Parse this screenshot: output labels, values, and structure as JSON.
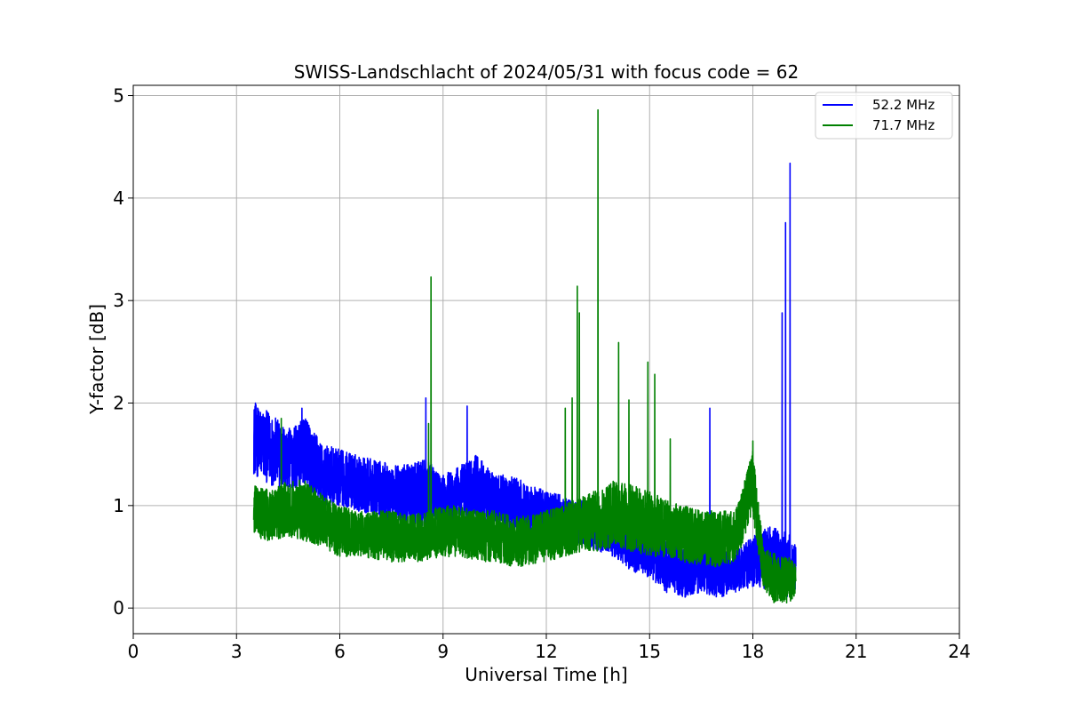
{
  "chart_data": {
    "type": "line",
    "title": "SWISS-Landschlacht of 2024/05/31 with focus code = 62",
    "xlabel": "Universal Time [h]",
    "ylabel": "Y-factor [dB]",
    "xlim": [
      0,
      24
    ],
    "ylim": [
      -0.25,
      5.1
    ],
    "xticks": [
      0,
      3,
      6,
      9,
      12,
      15,
      18,
      21,
      24
    ],
    "yticks": [
      0,
      1,
      2,
      3,
      4,
      5
    ],
    "grid": true,
    "legend_position": "top-right",
    "series": [
      {
        "name": "52.2 MHz",
        "color": "#0000ff",
        "envelope": [
          {
            "x": 3.5,
            "low": 1.3,
            "high": 2.0
          },
          {
            "x": 4.0,
            "low": 1.2,
            "high": 1.9
          },
          {
            "x": 4.5,
            "low": 1.15,
            "high": 1.75
          },
          {
            "x": 5.0,
            "low": 1.2,
            "high": 1.85
          },
          {
            "x": 5.5,
            "low": 1.0,
            "high": 1.6
          },
          {
            "x": 6.0,
            "low": 1.0,
            "high": 1.55
          },
          {
            "x": 6.5,
            "low": 0.95,
            "high": 1.5
          },
          {
            "x": 7.0,
            "low": 0.9,
            "high": 1.45
          },
          {
            "x": 7.5,
            "low": 0.85,
            "high": 1.4
          },
          {
            "x": 8.0,
            "low": 0.8,
            "high": 1.4
          },
          {
            "x": 8.5,
            "low": 0.8,
            "high": 1.45
          },
          {
            "x": 9.0,
            "low": 0.8,
            "high": 1.3
          },
          {
            "x": 9.5,
            "low": 0.85,
            "high": 1.4
          },
          {
            "x": 10.0,
            "low": 0.85,
            "high": 1.5
          },
          {
            "x": 10.5,
            "low": 0.8,
            "high": 1.3
          },
          {
            "x": 11.0,
            "low": 0.75,
            "high": 1.3
          },
          {
            "x": 11.5,
            "low": 0.7,
            "high": 1.2
          },
          {
            "x": 12.0,
            "low": 0.7,
            "high": 1.15
          },
          {
            "x": 12.5,
            "low": 0.65,
            "high": 1.1
          },
          {
            "x": 13.0,
            "low": 0.6,
            "high": 1.05
          },
          {
            "x": 13.5,
            "low": 0.55,
            "high": 1.0
          },
          {
            "x": 14.0,
            "low": 0.5,
            "high": 1.0
          },
          {
            "x": 14.5,
            "low": 0.35,
            "high": 0.85
          },
          {
            "x": 15.0,
            "low": 0.3,
            "high": 0.75
          },
          {
            "x": 15.5,
            "low": 0.15,
            "high": 0.65
          },
          {
            "x": 16.0,
            "low": 0.1,
            "high": 0.6
          },
          {
            "x": 16.5,
            "low": 0.15,
            "high": 0.65
          },
          {
            "x": 17.0,
            "low": 0.1,
            "high": 0.55
          },
          {
            "x": 17.5,
            "low": 0.15,
            "high": 0.55
          },
          {
            "x": 18.0,
            "low": 0.2,
            "high": 0.7
          },
          {
            "x": 18.5,
            "low": 0.15,
            "high": 0.8
          },
          {
            "x": 19.0,
            "low": 0.1,
            "high": 0.75
          },
          {
            "x": 19.25,
            "low": 0.1,
            "high": 0.6
          }
        ],
        "spikes": [
          {
            "x": 3.55,
            "y": 2.0
          },
          {
            "x": 4.9,
            "y": 1.95
          },
          {
            "x": 8.5,
            "y": 2.05
          },
          {
            "x": 9.7,
            "y": 1.97
          },
          {
            "x": 16.75,
            "y": 1.95
          },
          {
            "x": 18.85,
            "y": 2.88
          },
          {
            "x": 18.95,
            "y": 3.76
          },
          {
            "x": 19.08,
            "y": 4.34
          }
        ]
      },
      {
        "name": "71.7 MHz",
        "color": "#008000",
        "envelope": [
          {
            "x": 3.5,
            "low": 0.7,
            "high": 1.2
          },
          {
            "x": 4.0,
            "low": 0.65,
            "high": 1.15
          },
          {
            "x": 4.5,
            "low": 0.7,
            "high": 1.25
          },
          {
            "x": 5.0,
            "low": 0.65,
            "high": 1.25
          },
          {
            "x": 5.5,
            "low": 0.6,
            "high": 1.1
          },
          {
            "x": 6.0,
            "low": 0.5,
            "high": 1.0
          },
          {
            "x": 6.5,
            "low": 0.5,
            "high": 0.95
          },
          {
            "x": 7.0,
            "low": 0.48,
            "high": 0.95
          },
          {
            "x": 7.5,
            "low": 0.45,
            "high": 0.95
          },
          {
            "x": 8.0,
            "low": 0.45,
            "high": 0.9
          },
          {
            "x": 8.5,
            "low": 0.45,
            "high": 0.95
          },
          {
            "x": 9.0,
            "low": 0.5,
            "high": 1.0
          },
          {
            "x": 9.5,
            "low": 0.5,
            "high": 1.0
          },
          {
            "x": 10.0,
            "low": 0.45,
            "high": 0.95
          },
          {
            "x": 10.5,
            "low": 0.45,
            "high": 0.95
          },
          {
            "x": 11.0,
            "low": 0.4,
            "high": 0.9
          },
          {
            "x": 11.5,
            "low": 0.4,
            "high": 0.9
          },
          {
            "x": 12.0,
            "low": 0.45,
            "high": 0.95
          },
          {
            "x": 12.5,
            "low": 0.5,
            "high": 1.0
          },
          {
            "x": 13.0,
            "low": 0.55,
            "high": 1.1
          },
          {
            "x": 13.5,
            "low": 0.55,
            "high": 1.15
          },
          {
            "x": 14.0,
            "low": 0.6,
            "high": 1.25
          },
          {
            "x": 14.5,
            "low": 0.55,
            "high": 1.2
          },
          {
            "x": 15.0,
            "low": 0.5,
            "high": 1.15
          },
          {
            "x": 15.5,
            "low": 0.5,
            "high": 1.05
          },
          {
            "x": 16.0,
            "low": 0.45,
            "high": 1.0
          },
          {
            "x": 16.5,
            "low": 0.4,
            "high": 0.95
          },
          {
            "x": 17.0,
            "low": 0.4,
            "high": 0.95
          },
          {
            "x": 17.5,
            "low": 0.45,
            "high": 0.95
          },
          {
            "x": 18.0,
            "low": 0.9,
            "high": 1.55
          },
          {
            "x": 18.3,
            "low": 0.2,
            "high": 0.6
          },
          {
            "x": 18.6,
            "low": 0.05,
            "high": 0.55
          },
          {
            "x": 19.0,
            "low": 0.05,
            "high": 0.5
          },
          {
            "x": 19.25,
            "low": 0.1,
            "high": 0.45
          }
        ],
        "spikes": [
          {
            "x": 4.3,
            "y": 1.85
          },
          {
            "x": 8.58,
            "y": 1.8
          },
          {
            "x": 8.65,
            "y": 3.23
          },
          {
            "x": 12.55,
            "y": 1.95
          },
          {
            "x": 12.75,
            "y": 2.05
          },
          {
            "x": 12.9,
            "y": 3.14
          },
          {
            "x": 12.96,
            "y": 2.88
          },
          {
            "x": 13.5,
            "y": 4.86
          },
          {
            "x": 14.1,
            "y": 2.59
          },
          {
            "x": 14.4,
            "y": 2.03
          },
          {
            "x": 14.95,
            "y": 2.4
          },
          {
            "x": 15.15,
            "y": 2.28
          },
          {
            "x": 15.6,
            "y": 1.65
          },
          {
            "x": 18.0,
            "y": 1.63
          }
        ]
      }
    ]
  }
}
